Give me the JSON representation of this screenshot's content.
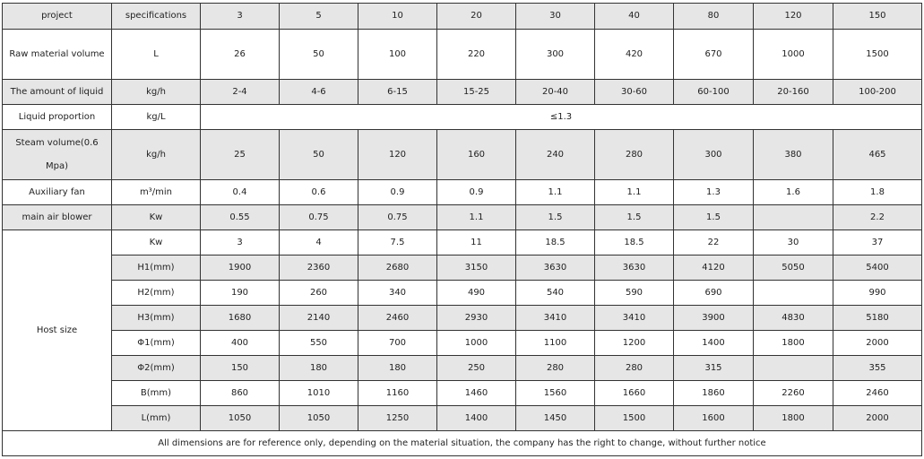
{
  "header": [
    "project",
    "specifications",
    "3",
    "5",
    "10",
    "20",
    "30",
    "40",
    "80",
    "120",
    "150"
  ],
  "rows": [
    {
      "label": "Raw material volume",
      "unit": "L",
      "values": [
        "26",
        "50",
        "100",
        "220",
        "300",
        "420",
        "670",
        "1000",
        "1500"
      ],
      "shaded": false,
      "tall": true
    },
    {
      "label": "The amount of liquid",
      "unit": "kg/h",
      "values": [
        "2-4",
        "4-6",
        "6-15",
        "15-25",
        "20-40",
        "30-60",
        "60-100",
        "20-160",
        "100-200"
      ],
      "shaded": true
    },
    {
      "label": "Liquid proportion",
      "unit": "kg/L",
      "merged": "≤1.3",
      "shaded": false
    },
    {
      "label": "Steam volume(0.6 Mpa)",
      "unit": "kg/h",
      "values": [
        "25",
        "50",
        "120",
        "160",
        "240",
        "280",
        "300",
        "380",
        "465"
      ],
      "shaded": true,
      "tall": true
    },
    {
      "label": "Auxiliary fan",
      "unit": "m³/min",
      "values": [
        "0.4",
        "0.6",
        "0.9",
        "0.9",
        "1.1",
        "1.1",
        "1.3",
        "1.6",
        "1.8"
      ],
      "shaded": false
    },
    {
      "label": "main air blower",
      "unit": "Kw",
      "values": [
        "0.55",
        "0.75",
        "0.75",
        "1.1",
        "1.5",
        "1.5",
        "1.5",
        "",
        "2.2"
      ],
      "shaded": true
    }
  ],
  "host": {
    "label": "Host size",
    "rows": [
      {
        "unit": "Kw",
        "values": [
          "3",
          "4",
          "7.5",
          "11",
          "18.5",
          "18.5",
          "22",
          "30",
          "37"
        ],
        "shaded": false
      },
      {
        "unit": "H1(mm)",
        "values": [
          "1900",
          "2360",
          "2680",
          "3150",
          "3630",
          "3630",
          "4120",
          "5050",
          "5400"
        ],
        "shaded": true
      },
      {
        "unit": "H2(mm)",
        "values": [
          "190",
          "260",
          "340",
          "490",
          "540",
          "590",
          "690",
          "",
          "990"
        ],
        "shaded": false
      },
      {
        "unit": "H3(mm)",
        "values": [
          "1680",
          "2140",
          "2460",
          "2930",
          "3410",
          "3410",
          "3900",
          "4830",
          "5180"
        ],
        "shaded": true
      },
      {
        "unit": "Φ1(mm)",
        "values": [
          "400",
          "550",
          "700",
          "1000",
          "1100",
          "1200",
          "1400",
          "1800",
          "2000"
        ],
        "shaded": false
      },
      {
        "unit": "Φ2(mm)",
        "values": [
          "150",
          "180",
          "180",
          "250",
          "280",
          "280",
          "315",
          "",
          "355"
        ],
        "shaded": true
      },
      {
        "unit": "B(mm)",
        "values": [
          "860",
          "1010",
          "1160",
          "1460",
          "1560",
          "1660",
          "1860",
          "2260",
          "2460"
        ],
        "shaded": false
      },
      {
        "unit": "L(mm)",
        "values": [
          "1050",
          "1050",
          "1250",
          "1400",
          "1450",
          "1500",
          "1600",
          "1800",
          "2000"
        ],
        "shaded": true
      }
    ]
  },
  "footer": "All dimensions are for reference only, depending on the material situation, the company has the right to change, without further notice",
  "colors": {
    "shade": "#e6e6e6",
    "border": "#333333"
  }
}
